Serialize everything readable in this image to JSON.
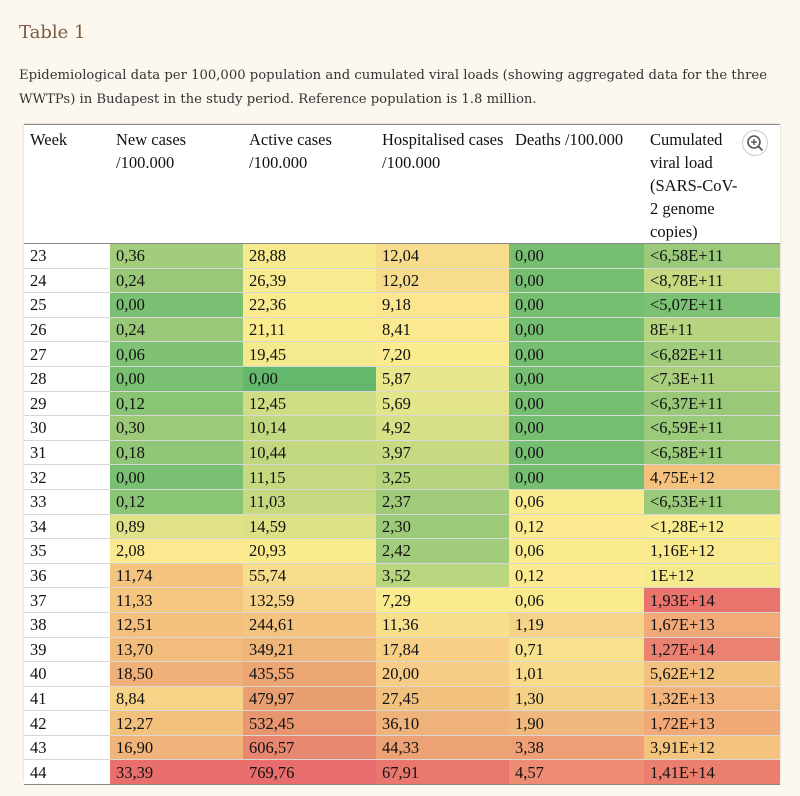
{
  "title": "Table 1",
  "caption": "Epidemiological data per 100,000 population and cumulated viral loads (showing aggregated data for the three WWTPs) in Budapest in the study period. Reference population is 1.8 million.",
  "columns": [
    {
      "label": "Week"
    },
    {
      "label": "New cases /100.000"
    },
    {
      "label": "Active cases /100.000"
    },
    {
      "label": "Hospitalised cases /100.000"
    },
    {
      "label": "Deaths /100.000"
    },
    {
      "label": "Cumulated viral load (SARS-CoV-2 genome copies)"
    }
  ],
  "zoom_icon": "zoom-in-icon",
  "rows": [
    {
      "cells": [
        "23",
        "0,36",
        "28,88",
        "12,04",
        "0,00",
        "<6,58E+11"
      ],
      "colors": [
        "#fff",
        "#a3cc7c",
        "#f6e98e",
        "#f7dc8c",
        "#76bf72",
        "#9bca7b"
      ]
    },
    {
      "cells": [
        "24",
        "0,24",
        "26,39",
        "12,02",
        "0,00",
        "<8,78E+11"
      ],
      "colors": [
        "#fff",
        "#99c978",
        "#f9eb8f",
        "#f7dc8c",
        "#76bf72",
        "#c5d981"
      ]
    },
    {
      "cells": [
        "25",
        "0,00",
        "22,36",
        "9,18",
        "0,00",
        "<5,07E+11"
      ],
      "colors": [
        "#fff",
        "#79c072",
        "#fbeb8f",
        "#fbe68f",
        "#76bf72",
        "#7cc174"
      ]
    },
    {
      "cells": [
        "26",
        "0,24",
        "21,11",
        "8,41",
        "0,00",
        "8E+11"
      ],
      "colors": [
        "#fff",
        "#99c978",
        "#fbeb8f",
        "#fbe98f",
        "#76bf72",
        "#b7d57e"
      ]
    },
    {
      "cells": [
        "27",
        "0,06",
        "19,45",
        "7,20",
        "0,00",
        "<6,82E+11"
      ],
      "colors": [
        "#fff",
        "#80c274",
        "#f2ea8d",
        "#fbeb8f",
        "#76bf72",
        "#a1cc7b"
      ]
    },
    {
      "cells": [
        "28",
        "0,00",
        "0,00",
        "5,87",
        "0,00",
        "<7,3E+11"
      ],
      "colors": [
        "#fff",
        "#79c072",
        "#63b86d",
        "#e8e78b",
        "#76bf72",
        "#a9cf7c"
      ]
    },
    {
      "cells": [
        "29",
        "0,12",
        "12,45",
        "5,69",
        "0,00",
        "<6,37E+11"
      ],
      "colors": [
        "#fff",
        "#89c575",
        "#d0dd84",
        "#e3e58a",
        "#76bf72",
        "#99c978"
      ]
    },
    {
      "cells": [
        "30",
        "0,30",
        "10,14",
        "4,92",
        "0,00",
        "<6,59E+11"
      ],
      "colors": [
        "#fff",
        "#9dca79",
        "#c1d780",
        "#d7e087",
        "#76bf72",
        "#9bca7b"
      ]
    },
    {
      "cells": [
        "31",
        "0,18",
        "10,44",
        "3,97",
        "0,00",
        "<6,58E+11"
      ],
      "colors": [
        "#fff",
        "#90c677",
        "#c2d880",
        "#c7da82",
        "#76bf72",
        "#9bca7b"
      ]
    },
    {
      "cells": [
        "32",
        "0,00",
        "11,15",
        "3,25",
        "0,00",
        "4,75E+12"
      ],
      "colors": [
        "#fff",
        "#79c072",
        "#c6d981",
        "#b6d47e",
        "#76bf72",
        "#f4c27e"
      ]
    },
    {
      "cells": [
        "33",
        "0,12",
        "11,03",
        "2,37",
        "0,06",
        "<6,53E+11"
      ],
      "colors": [
        "#fff",
        "#89c575",
        "#c5d981",
        "#9fcb7a",
        "#faeb8f",
        "#9bca7b"
      ]
    },
    {
      "cells": [
        "34",
        "0,89",
        "14,59",
        "2,30",
        "0,12",
        "<1,28E+12"
      ],
      "colors": [
        "#fff",
        "#dfe289",
        "#dce186",
        "#9cca79",
        "#fcea90",
        "#f9eb8f"
      ]
    },
    {
      "cells": [
        "35",
        "2,08",
        "20,93",
        "2,42",
        "0,06",
        "1,16E+12"
      ],
      "colors": [
        "#fff",
        "#fbe98f",
        "#fbeb8f",
        "#a0cc7b",
        "#faeb8f",
        "#f9e98f"
      ]
    },
    {
      "cells": [
        "36",
        "11,74",
        "55,74",
        "3,52",
        "0,12",
        "1E+12"
      ],
      "colors": [
        "#fff",
        "#f4c47f",
        "#f7dc8c",
        "#b9d67f",
        "#fcea90",
        "#f6ea8e"
      ]
    },
    {
      "cells": [
        "37",
        "11,33",
        "132,59",
        "7,29",
        "0,06",
        "1,93E+14"
      ],
      "colors": [
        "#fff",
        "#f5c680",
        "#f6d388",
        "#fbeb8f",
        "#faeb8f",
        "#e9736d"
      ]
    },
    {
      "cells": [
        "38",
        "12,51",
        "244,61",
        "11,36",
        "1,19",
        "1,67E+13"
      ],
      "colors": [
        "#fff",
        "#f3c07d",
        "#f3c37f",
        "#f8df8c",
        "#f5d388",
        "#f1aa78"
      ]
    },
    {
      "cells": [
        "39",
        "13,70",
        "349,21",
        "17,84",
        "0,71",
        "1,27E+14"
      ],
      "colors": [
        "#fff",
        "#f1bc7c",
        "#efb67a",
        "#f7cf87",
        "#f8e18d",
        "#eb8170"
      ]
    },
    {
      "cells": [
        "40",
        "18,50",
        "435,55",
        "20,00",
        "1,01",
        "5,62E+12"
      ],
      "colors": [
        "#fff",
        "#efb07a",
        "#eca674",
        "#f6cc86",
        "#f7db8b",
        "#f3c17e"
      ]
    },
    {
      "cells": [
        "41",
        "8,84",
        "479,97",
        "27,45",
        "1,30",
        "1,32E+13"
      ],
      "colors": [
        "#fff",
        "#f7d387",
        "#ea9f72",
        "#f3c17e",
        "#f5d087",
        "#f2b47b"
      ]
    },
    {
      "cells": [
        "42",
        "12,27",
        "532,45",
        "36,10",
        "1,90",
        "1,72E+13"
      ],
      "colors": [
        "#fff",
        "#f3c17e",
        "#e99570",
        "#f0b27b",
        "#f0b87c",
        "#f1a977"
      ]
    },
    {
      "cells": [
        "43",
        "16,90",
        "606,57",
        "44,33",
        "3,38",
        "3,91E+12"
      ],
      "colors": [
        "#fff",
        "#f0b47b",
        "#e8876f",
        "#eda275",
        "#ef9f75",
        "#f4c47f"
      ]
    },
    {
      "cells": [
        "44",
        "33,39",
        "769,76",
        "67,91",
        "4,57",
        "1,41E+14"
      ],
      "colors": [
        "#fff",
        "#e96f6c",
        "#e86d6c",
        "#e9776e",
        "#ed8c72",
        "#ea7e6f"
      ]
    }
  ]
}
